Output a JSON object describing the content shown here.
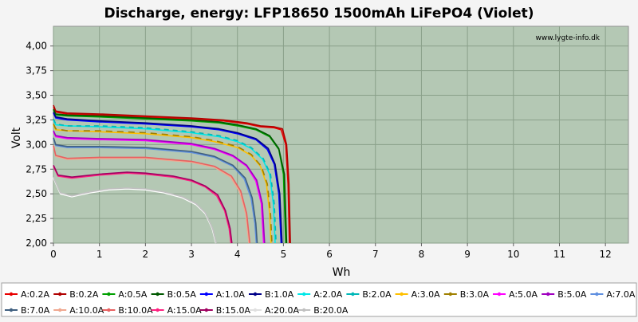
{
  "chart_data": {
    "type": "line",
    "title": "Discharge, energy: LFP18650 1500mAh LiFePO4 (Violet)",
    "xlabel": "Wh",
    "ylabel": "Volt",
    "watermark": "www.lygte-info.dk",
    "xlim": [
      0,
      12.5
    ],
    "ylim": [
      2.0,
      4.2
    ],
    "x_ticks": [
      0,
      1,
      2,
      3,
      4,
      5,
      6,
      7,
      8,
      9,
      10,
      11,
      12
    ],
    "y_ticks": [
      "2,00",
      "2,25",
      "2,50",
      "2,75",
      "3,00",
      "3,25",
      "3,50",
      "3,75",
      "4,00"
    ],
    "y_tick_values": [
      2.0,
      2.25,
      2.5,
      2.75,
      3.0,
      3.25,
      3.5,
      3.75,
      4.0
    ],
    "grid": true,
    "legend_position": "bottom",
    "plot_background": "#b4c8b4",
    "series": [
      {
        "name": "A:0.2A",
        "color": "#e80000",
        "dash": "",
        "points": [
          [
            0,
            3.38
          ],
          [
            0.05,
            3.33
          ],
          [
            0.3,
            3.31
          ],
          [
            1.0,
            3.3
          ],
          [
            2.0,
            3.28
          ],
          [
            3.0,
            3.26
          ],
          [
            3.7,
            3.24
          ],
          [
            4.2,
            3.21
          ],
          [
            4.5,
            3.18
          ],
          [
            4.8,
            3.17
          ],
          [
            4.95,
            3.15
          ],
          [
            5.05,
            3.0
          ],
          [
            5.1,
            2.6
          ],
          [
            5.13,
            2.0
          ]
        ]
      },
      {
        "name": "B:0.2A",
        "color": "#b00000",
        "dash": "",
        "points": [
          [
            0,
            3.4
          ],
          [
            0.05,
            3.34
          ],
          [
            0.3,
            3.32
          ],
          [
            1.0,
            3.31
          ],
          [
            2.0,
            3.29
          ],
          [
            3.0,
            3.27
          ],
          [
            3.7,
            3.25
          ],
          [
            4.2,
            3.22
          ],
          [
            4.5,
            3.19
          ],
          [
            4.8,
            3.18
          ],
          [
            4.98,
            3.16
          ],
          [
            5.07,
            3.0
          ],
          [
            5.12,
            2.6
          ],
          [
            5.15,
            2.0
          ]
        ]
      },
      {
        "name": "A:0.5A",
        "color": "#00a000",
        "dash": "",
        "points": [
          [
            0,
            3.35
          ],
          [
            0.05,
            3.3
          ],
          [
            0.3,
            3.29
          ],
          [
            1.0,
            3.28
          ],
          [
            2.0,
            3.26
          ],
          [
            3.0,
            3.24
          ],
          [
            3.6,
            3.22
          ],
          [
            4.0,
            3.19
          ],
          [
            4.4,
            3.15
          ],
          [
            4.7,
            3.08
          ],
          [
            4.9,
            2.95
          ],
          [
            5.0,
            2.7
          ],
          [
            5.05,
            2.0
          ]
        ]
      },
      {
        "name": "B:0.5A",
        "color": "#005800",
        "dash": "",
        "points": [
          [
            0,
            3.36
          ],
          [
            0.05,
            3.31
          ],
          [
            0.3,
            3.3
          ],
          [
            1.0,
            3.29
          ],
          [
            2.0,
            3.27
          ],
          [
            3.0,
            3.25
          ],
          [
            3.6,
            3.23
          ],
          [
            4.0,
            3.2
          ],
          [
            4.4,
            3.16
          ],
          [
            4.7,
            3.09
          ],
          [
            4.9,
            2.96
          ],
          [
            5.02,
            2.7
          ],
          [
            5.07,
            2.0
          ]
        ]
      },
      {
        "name": "A:1.0A",
        "color": "#0000ff",
        "dash": "",
        "points": [
          [
            0,
            3.32
          ],
          [
            0.05,
            3.27
          ],
          [
            0.3,
            3.25
          ],
          [
            1.0,
            3.23
          ],
          [
            2.0,
            3.21
          ],
          [
            3.0,
            3.18
          ],
          [
            3.6,
            3.15
          ],
          [
            4.0,
            3.11
          ],
          [
            4.4,
            3.05
          ],
          [
            4.65,
            2.95
          ],
          [
            4.8,
            2.8
          ],
          [
            4.9,
            2.5
          ],
          [
            4.95,
            2.0
          ]
        ]
      },
      {
        "name": "B:1.0A",
        "color": "#000088",
        "dash": "",
        "points": [
          [
            0,
            3.33
          ],
          [
            0.05,
            3.28
          ],
          [
            0.3,
            3.26
          ],
          [
            1.0,
            3.24
          ],
          [
            2.0,
            3.22
          ],
          [
            3.0,
            3.19
          ],
          [
            3.6,
            3.16
          ],
          [
            4.0,
            3.12
          ],
          [
            4.4,
            3.06
          ],
          [
            4.67,
            2.96
          ],
          [
            4.82,
            2.8
          ],
          [
            4.92,
            2.5
          ],
          [
            4.97,
            2.0
          ]
        ]
      },
      {
        "name": "A:2.0A",
        "color": "#00e8e8",
        "dash": "",
        "points": [
          [
            0,
            3.25
          ],
          [
            0.05,
            3.2
          ],
          [
            0.3,
            3.19
          ],
          [
            1.0,
            3.18
          ],
          [
            2.0,
            3.16
          ],
          [
            3.0,
            3.12
          ],
          [
            3.6,
            3.08
          ],
          [
            4.0,
            3.03
          ],
          [
            4.3,
            2.96
          ],
          [
            4.55,
            2.85
          ],
          [
            4.7,
            2.7
          ],
          [
            4.78,
            2.4
          ],
          [
            4.82,
            2.0
          ]
        ]
      },
      {
        "name": "B:2.0A",
        "color": "#00b8b8",
        "dash": "6,5",
        "points": [
          [
            0,
            3.26
          ],
          [
            0.05,
            3.21
          ],
          [
            0.3,
            3.19
          ],
          [
            1.0,
            3.19
          ],
          [
            2.0,
            3.17
          ],
          [
            3.0,
            3.13
          ],
          [
            3.6,
            3.09
          ],
          [
            4.0,
            3.04
          ],
          [
            4.3,
            2.97
          ],
          [
            4.56,
            2.86
          ],
          [
            4.72,
            2.7
          ],
          [
            4.8,
            2.4
          ],
          [
            4.84,
            2.0
          ]
        ]
      },
      {
        "name": "A:3.0A",
        "color": "#ffc000",
        "dash": "",
        "points": [
          [
            0,
            3.2
          ],
          [
            0.05,
            3.15
          ],
          [
            0.3,
            3.14
          ],
          [
            1.0,
            3.13
          ],
          [
            2.0,
            3.11
          ],
          [
            3.0,
            3.07
          ],
          [
            3.5,
            3.03
          ],
          [
            4.0,
            2.97
          ],
          [
            4.3,
            2.89
          ],
          [
            4.5,
            2.78
          ],
          [
            4.63,
            2.6
          ],
          [
            4.7,
            2.3
          ],
          [
            4.73,
            2.0
          ]
        ]
      },
      {
        "name": "B:3.0A",
        "color": "#a08000",
        "dash": "8,6",
        "points": [
          [
            0,
            3.21
          ],
          [
            0.05,
            3.16
          ],
          [
            0.3,
            3.14
          ],
          [
            1.0,
            3.14
          ],
          [
            2.0,
            3.12
          ],
          [
            3.0,
            3.08
          ],
          [
            3.5,
            3.04
          ],
          [
            4.0,
            2.98
          ],
          [
            4.3,
            2.9
          ],
          [
            4.52,
            2.78
          ],
          [
            4.65,
            2.6
          ],
          [
            4.72,
            2.3
          ],
          [
            4.75,
            2.0
          ]
        ]
      },
      {
        "name": "A:5.0A",
        "color": "#ff00ff",
        "dash": "",
        "points": [
          [
            0,
            3.13
          ],
          [
            0.05,
            3.08
          ],
          [
            0.3,
            3.06
          ],
          [
            1.0,
            3.05
          ],
          [
            2.0,
            3.04
          ],
          [
            3.0,
            3.0
          ],
          [
            3.5,
            2.95
          ],
          [
            3.9,
            2.88
          ],
          [
            4.2,
            2.78
          ],
          [
            4.4,
            2.63
          ],
          [
            4.52,
            2.4
          ],
          [
            4.57,
            2.0
          ]
        ]
      },
      {
        "name": "B:5.0A",
        "color": "#a000c0",
        "dash": "",
        "points": [
          [
            0,
            3.14
          ],
          [
            0.05,
            3.09
          ],
          [
            0.3,
            3.07
          ],
          [
            1.0,
            3.06
          ],
          [
            2.0,
            3.05
          ],
          [
            3.0,
            3.01
          ],
          [
            3.5,
            2.96
          ],
          [
            3.9,
            2.89
          ],
          [
            4.2,
            2.79
          ],
          [
            4.42,
            2.64
          ],
          [
            4.54,
            2.4
          ],
          [
            4.59,
            2.0
          ]
        ]
      },
      {
        "name": "A:7.0A",
        "color": "#6090e0",
        "dash": "",
        "points": [
          [
            0,
            3.06
          ],
          [
            0.05,
            2.99
          ],
          [
            0.3,
            2.97
          ],
          [
            1.0,
            2.97
          ],
          [
            2.0,
            2.96
          ],
          [
            3.0,
            2.92
          ],
          [
            3.5,
            2.87
          ],
          [
            3.9,
            2.78
          ],
          [
            4.15,
            2.65
          ],
          [
            4.3,
            2.45
          ],
          [
            4.38,
            2.2
          ],
          [
            4.41,
            2.0
          ]
        ]
      },
      {
        "name": "B:7.0A",
        "color": "#406080",
        "dash": "",
        "points": [
          [
            0,
            3.07
          ],
          [
            0.05,
            3.0
          ],
          [
            0.3,
            2.98
          ],
          [
            1.0,
            2.98
          ],
          [
            2.0,
            2.97
          ],
          [
            3.0,
            2.93
          ],
          [
            3.5,
            2.88
          ],
          [
            3.9,
            2.79
          ],
          [
            4.17,
            2.66
          ],
          [
            4.32,
            2.46
          ],
          [
            4.4,
            2.2
          ],
          [
            4.43,
            2.0
          ]
        ]
      },
      {
        "name": "A:10.0A",
        "color": "#f0a890",
        "dash": "",
        "points": [
          [
            0,
            2.98
          ],
          [
            0.05,
            2.88
          ],
          [
            0.3,
            2.85
          ],
          [
            1.0,
            2.86
          ],
          [
            2.0,
            2.86
          ],
          [
            3.0,
            2.82
          ],
          [
            3.5,
            2.77
          ],
          [
            3.85,
            2.67
          ],
          [
            4.05,
            2.52
          ],
          [
            4.18,
            2.3
          ],
          [
            4.25,
            2.0
          ]
        ]
      },
      {
        "name": "B:10.0A",
        "color": "#e86060",
        "dash": "",
        "points": [
          [
            0,
            2.99
          ],
          [
            0.05,
            2.89
          ],
          [
            0.3,
            2.86
          ],
          [
            1.0,
            2.87
          ],
          [
            2.0,
            2.87
          ],
          [
            3.0,
            2.83
          ],
          [
            3.5,
            2.78
          ],
          [
            3.87,
            2.68
          ],
          [
            4.07,
            2.53
          ],
          [
            4.2,
            2.3
          ],
          [
            4.27,
            2.0
          ]
        ]
      },
      {
        "name": "A:15.0A",
        "color": "#ff2080",
        "dash": "",
        "points": [
          [
            0,
            2.78
          ],
          [
            0.1,
            2.68
          ],
          [
            0.4,
            2.66
          ],
          [
            1.0,
            2.69
          ],
          [
            1.6,
            2.71
          ],
          [
            2.0,
            2.7
          ],
          [
            2.6,
            2.67
          ],
          [
            3.0,
            2.63
          ],
          [
            3.3,
            2.57
          ],
          [
            3.55,
            2.48
          ],
          [
            3.72,
            2.33
          ],
          [
            3.82,
            2.15
          ],
          [
            3.86,
            2.0
          ]
        ]
      },
      {
        "name": "B:15.0A",
        "color": "#a00060",
        "dash": "",
        "points": [
          [
            0,
            2.79
          ],
          [
            0.1,
            2.69
          ],
          [
            0.4,
            2.67
          ],
          [
            1.0,
            2.7
          ],
          [
            1.6,
            2.72
          ],
          [
            2.0,
            2.71
          ],
          [
            2.6,
            2.68
          ],
          [
            3.0,
            2.64
          ],
          [
            3.3,
            2.58
          ],
          [
            3.57,
            2.49
          ],
          [
            3.74,
            2.33
          ],
          [
            3.84,
            2.15
          ],
          [
            3.88,
            2.0
          ]
        ]
      },
      {
        "name": "A:20.0A",
        "color": "#ffffff",
        "dash": "",
        "points": [
          [
            0,
            2.66
          ],
          [
            0.15,
            2.5
          ],
          [
            0.4,
            2.47
          ],
          [
            0.8,
            2.51
          ],
          [
            1.2,
            2.54
          ],
          [
            1.6,
            2.55
          ],
          [
            2.0,
            2.54
          ],
          [
            2.4,
            2.51
          ],
          [
            2.8,
            2.46
          ],
          [
            3.1,
            2.39
          ],
          [
            3.3,
            2.3
          ],
          [
            3.45,
            2.15
          ],
          [
            3.53,
            2.0
          ]
        ]
      },
      {
        "name": "B:20.0A",
        "color": "#c0c0c0",
        "dash": "",
        "points": [
          [
            0,
            2.67
          ],
          [
            0.15,
            2.51
          ],
          [
            0.4,
            2.48
          ],
          [
            0.8,
            2.52
          ],
          [
            1.2,
            2.55
          ],
          [
            1.6,
            2.56
          ],
          [
            2.0,
            2.55
          ],
          [
            2.4,
            2.52
          ],
          [
            2.8,
            2.47
          ],
          [
            3.1,
            2.4
          ],
          [
            3.3,
            2.31
          ],
          [
            3.46,
            2.15
          ],
          [
            3.54,
            2.0
          ]
        ]
      }
    ]
  }
}
